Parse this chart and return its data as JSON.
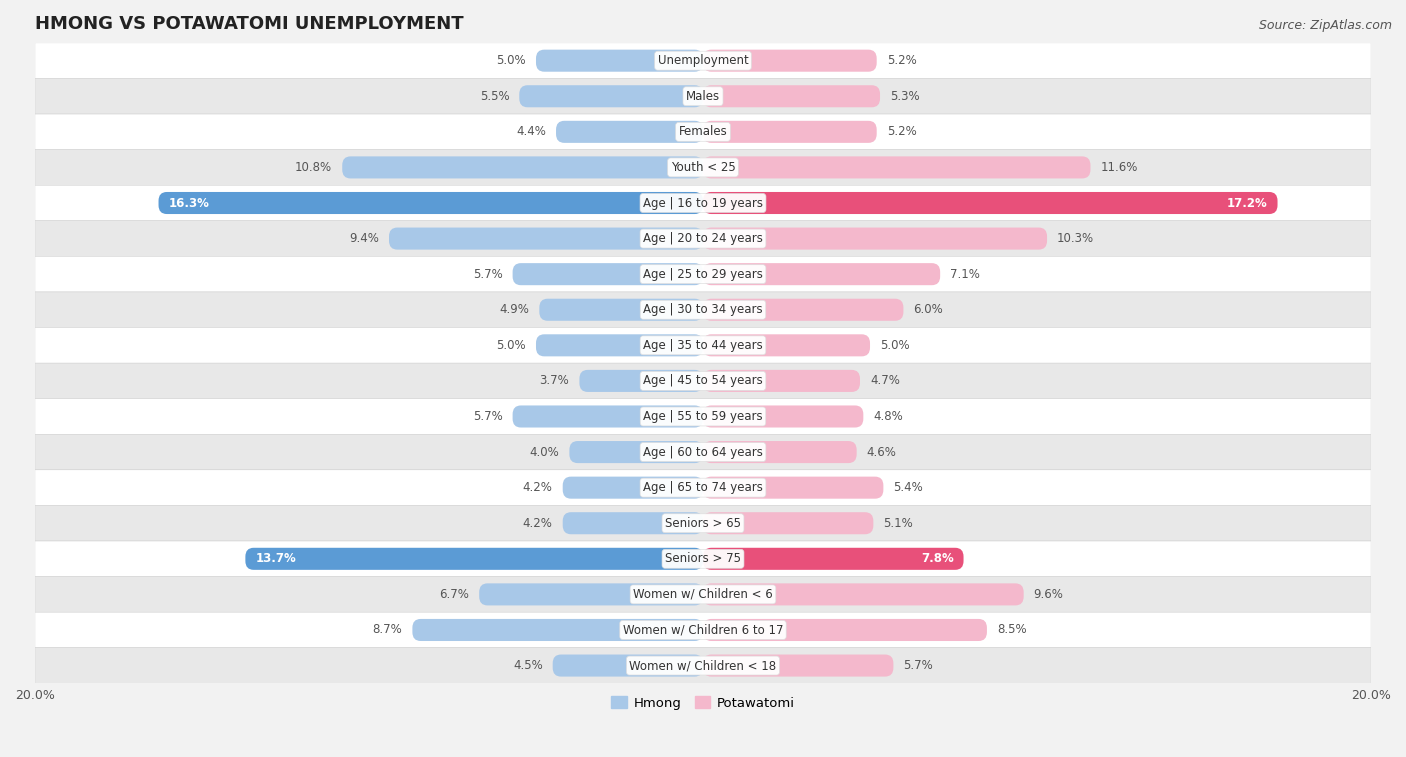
{
  "title": "HMONG VS POTAWATOMI UNEMPLOYMENT",
  "source": "Source: ZipAtlas.com",
  "categories": [
    "Unemployment",
    "Males",
    "Females",
    "Youth < 25",
    "Age | 16 to 19 years",
    "Age | 20 to 24 years",
    "Age | 25 to 29 years",
    "Age | 30 to 34 years",
    "Age | 35 to 44 years",
    "Age | 45 to 54 years",
    "Age | 55 to 59 years",
    "Age | 60 to 64 years",
    "Age | 65 to 74 years",
    "Seniors > 65",
    "Seniors > 75",
    "Women w/ Children < 6",
    "Women w/ Children 6 to 17",
    "Women w/ Children < 18"
  ],
  "hmong": [
    5.0,
    5.5,
    4.4,
    10.8,
    16.3,
    9.4,
    5.7,
    4.9,
    5.0,
    3.7,
    5.7,
    4.0,
    4.2,
    4.2,
    13.7,
    6.7,
    8.7,
    4.5
  ],
  "potawatomi": [
    5.2,
    5.3,
    5.2,
    11.6,
    17.2,
    10.3,
    7.1,
    6.0,
    5.0,
    4.7,
    4.8,
    4.6,
    5.4,
    5.1,
    7.8,
    9.6,
    8.5,
    5.7
  ],
  "hmong_color_default": "#a8c8e8",
  "hmong_color_highlight": "#5b9bd5",
  "potawatomi_color_default": "#f4b8cc",
  "potawatomi_color_highlight": "#e8507a",
  "xlim": 20.0,
  "bar_height": 0.62,
  "background_color": "#f2f2f2",
  "row_color_light": "#ffffff",
  "row_color_dark": "#e8e8e8",
  "legend_hmong": "Hmong",
  "legend_potawatomi": "Potawatomi",
  "highlight_rows": [
    4,
    14
  ],
  "label_fontsize": 8.5,
  "cat_fontsize": 8.5,
  "title_fontsize": 13,
  "source_fontsize": 9
}
